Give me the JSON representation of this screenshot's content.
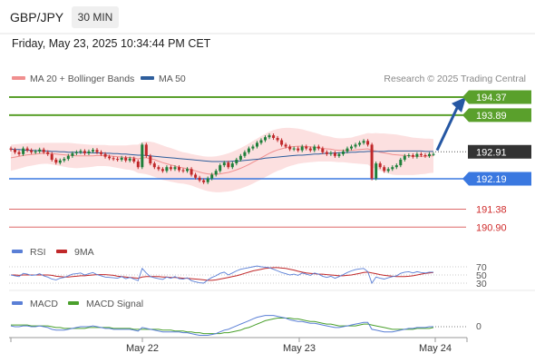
{
  "header": {
    "pair": "GBP/JPY",
    "timeframe": "30 MIN",
    "datetime": "Friday, May 23, 2025 10:34:44 PM CET"
  },
  "colors": {
    "ma20": "#f08f8f",
    "ma50": "#2e5e9c",
    "band_fill": "#fbd6d6",
    "resistance": "#5aa02c",
    "support": "#3a78e0",
    "target": "#cf2a2a",
    "candle_up": "#1e7f3a",
    "candle_down": "#c0282a",
    "rsi": "#5a7fd6",
    "rsi_ma": "#c0282a",
    "macd": "#5a7fd6",
    "macd_signal": "#4aa02c",
    "arrow": "#2557a3"
  },
  "chart_data": [
    {
      "type": "line",
      "panel": "price",
      "legend": [
        "MA 20 + Bollinger Bands",
        "MA 50"
      ],
      "credit": "Research © 2025 Trading Central",
      "x_ticks": [
        "May 22",
        "May 23",
        "May 24"
      ],
      "ylim": [
        190.6,
        194.7
      ],
      "current_price": 192.91,
      "levels": [
        {
          "value": 194.37,
          "label": "194.37",
          "kind": "resistance"
        },
        {
          "value": 193.89,
          "label": "193.89",
          "kind": "resistance"
        },
        {
          "value": 192.91,
          "label": "192.91",
          "kind": "current"
        },
        {
          "value": 192.19,
          "label": "192.19",
          "kind": "support"
        },
        {
          "value": 191.38,
          "label": "191.38",
          "kind": "target"
        },
        {
          "value": 190.9,
          "label": "190.90",
          "kind": "target"
        }
      ],
      "forecast_arrow": {
        "from": 192.95,
        "to": 194.3
      },
      "close": [
        192.97,
        192.9,
        192.85,
        193.0,
        192.95,
        192.9,
        192.92,
        192.97,
        192.9,
        192.85,
        192.7,
        192.62,
        192.68,
        192.72,
        192.8,
        192.87,
        192.9,
        192.93,
        192.87,
        192.92,
        192.96,
        192.9,
        192.85,
        192.78,
        192.74,
        192.72,
        192.7,
        192.75,
        192.68,
        192.73,
        192.65,
        192.5,
        193.1,
        192.8,
        192.6,
        192.5,
        192.45,
        192.4,
        192.5,
        192.45,
        192.5,
        192.42,
        192.4,
        192.45,
        192.3,
        192.22,
        192.15,
        192.1,
        192.2,
        192.3,
        192.4,
        192.55,
        192.62,
        192.5,
        192.6,
        192.7,
        192.8,
        192.9,
        193.0,
        193.05,
        193.15,
        193.22,
        193.3,
        193.35,
        193.28,
        193.22,
        193.1,
        193.05,
        192.98,
        193.0,
        192.95,
        193.05,
        193.0,
        192.95,
        193.05,
        193.0,
        192.9,
        192.85,
        192.88,
        192.8,
        192.85,
        192.92,
        193.0,
        193.05,
        193.1,
        193.15,
        193.2,
        193.1,
        192.2,
        192.6,
        192.5,
        192.4,
        192.45,
        192.5,
        192.55,
        192.7,
        192.8,
        192.82,
        192.78,
        192.85,
        192.82,
        192.8,
        192.85,
        192.85
      ],
      "ma20": [
        192.75,
        192.77,
        192.79,
        192.81,
        192.83,
        192.84,
        192.85,
        192.86,
        192.87,
        192.87,
        192.86,
        192.85,
        192.84,
        192.83,
        192.82,
        192.81,
        192.8,
        192.8,
        192.8,
        192.8,
        192.8,
        192.81,
        192.81,
        192.81,
        192.8,
        192.79,
        192.78,
        192.77,
        192.76,
        192.76,
        192.75,
        192.72,
        192.75,
        192.75,
        192.73,
        192.7,
        192.66,
        192.62,
        192.59,
        192.56,
        192.53,
        192.5,
        192.48,
        192.46,
        192.43,
        192.4,
        192.37,
        192.34,
        192.32,
        192.31,
        192.31,
        192.32,
        192.34,
        192.36,
        192.39,
        192.43,
        192.47,
        192.52,
        192.57,
        192.63,
        192.69,
        192.75,
        192.81,
        192.87,
        192.92,
        192.96,
        192.99,
        193.02,
        193.04,
        193.05,
        193.06,
        193.06,
        193.05,
        193.04,
        193.03,
        193.02,
        193.0,
        192.99,
        192.98,
        192.96,
        192.95,
        192.95,
        192.95,
        192.95,
        192.96,
        192.97,
        192.98,
        192.99,
        192.95,
        192.93,
        192.9,
        192.88,
        192.86,
        192.84,
        192.83,
        192.82,
        192.81,
        192.8,
        192.79,
        192.79,
        192.79,
        192.79,
        192.8,
        192.8
      ],
      "ma50": [
        192.98,
        192.97,
        192.97,
        192.96,
        192.95,
        192.95,
        192.94,
        192.94,
        192.93,
        192.93,
        192.92,
        192.92,
        192.91,
        192.91,
        192.9,
        192.9,
        192.9,
        192.89,
        192.89,
        192.89,
        192.88,
        192.88,
        192.88,
        192.87,
        192.87,
        192.86,
        192.86,
        192.85,
        192.85,
        192.84,
        192.83,
        192.82,
        192.82,
        192.81,
        192.8,
        192.79,
        192.78,
        192.77,
        192.76,
        192.75,
        192.74,
        192.73,
        192.72,
        192.71,
        192.7,
        192.69,
        192.68,
        192.67,
        192.66,
        192.65,
        192.65,
        192.65,
        192.65,
        192.65,
        192.66,
        192.66,
        192.67,
        192.68,
        192.69,
        192.7,
        192.71,
        192.72,
        192.74,
        192.75,
        192.76,
        192.77,
        192.78,
        192.79,
        192.8,
        192.81,
        192.82,
        192.82,
        192.83,
        192.84,
        192.85,
        192.85,
        192.86,
        192.87,
        192.87,
        192.88,
        192.88,
        192.89,
        192.89,
        192.9,
        192.9,
        192.91,
        192.91,
        192.92,
        192.92,
        192.92,
        192.92,
        192.92,
        192.93,
        192.93,
        192.93,
        192.93,
        192.93,
        192.93,
        192.93,
        192.93,
        192.93,
        192.92,
        192.92,
        192.92
      ],
      "bb_width": [
        0.35,
        0.34,
        0.33,
        0.32,
        0.31,
        0.3,
        0.29,
        0.28,
        0.28,
        0.28,
        0.29,
        0.3,
        0.31,
        0.32,
        0.33,
        0.33,
        0.33,
        0.32,
        0.31,
        0.3,
        0.29,
        0.28,
        0.28,
        0.28,
        0.28,
        0.29,
        0.3,
        0.31,
        0.32,
        0.33,
        0.35,
        0.38,
        0.42,
        0.44,
        0.45,
        0.46,
        0.46,
        0.46,
        0.45,
        0.45,
        0.44,
        0.43,
        0.42,
        0.42,
        0.42,
        0.43,
        0.44,
        0.45,
        0.46,
        0.47,
        0.48,
        0.49,
        0.5,
        0.51,
        0.52,
        0.53,
        0.54,
        0.55,
        0.56,
        0.57,
        0.57,
        0.58,
        0.58,
        0.58,
        0.57,
        0.56,
        0.55,
        0.53,
        0.51,
        0.49,
        0.47,
        0.45,
        0.43,
        0.41,
        0.39,
        0.37,
        0.35,
        0.34,
        0.33,
        0.32,
        0.32,
        0.32,
        0.33,
        0.34,
        0.36,
        0.38,
        0.4,
        0.42,
        0.45,
        0.48,
        0.5,
        0.52,
        0.53,
        0.54,
        0.54,
        0.53,
        0.52,
        0.51,
        0.5,
        0.49,
        0.48,
        0.47,
        0.46,
        0.45
      ]
    },
    {
      "type": "line",
      "panel": "rsi",
      "legend": [
        "RSI",
        "9MA"
      ],
      "y_ticks": [
        "70",
        "50",
        "30"
      ],
      "ylim": [
        20,
        80
      ],
      "rsi": [
        50,
        48,
        46,
        54,
        52,
        49,
        50,
        53,
        48,
        45,
        40,
        38,
        42,
        44,
        48,
        52,
        53,
        55,
        50,
        53,
        56,
        51,
        48,
        45,
        44,
        43,
        42,
        46,
        41,
        44,
        40,
        36,
        66,
        55,
        46,
        43,
        41,
        39,
        45,
        42,
        46,
        41,
        40,
        43,
        36,
        33,
        31,
        30,
        38,
        44,
        48,
        54,
        57,
        50,
        55,
        60,
        64,
        66,
        68,
        70,
        72,
        70,
        69,
        68,
        64,
        60,
        56,
        53,
        50,
        52,
        49,
        55,
        52,
        49,
        55,
        52,
        47,
        44,
        47,
        42,
        46,
        51,
        56,
        60,
        63,
        65,
        66,
        58,
        30,
        45,
        42,
        40,
        43,
        46,
        48,
        54,
        57,
        58,
        55,
        58,
        56,
        55,
        57,
        57
      ],
      "ma9": [
        50,
        50,
        49,
        50,
        50,
        50,
        50,
        50,
        50,
        50,
        49,
        47,
        46,
        45,
        45,
        46,
        47,
        48,
        48,
        49,
        50,
        51,
        51,
        51,
        50,
        49,
        47,
        46,
        45,
        44,
        43,
        42,
        45,
        46,
        46,
        46,
        46,
        45,
        45,
        44,
        44,
        43,
        42,
        42,
        41,
        40,
        39,
        38,
        37,
        37,
        38,
        40,
        42,
        44,
        46,
        48,
        51,
        54,
        57,
        60,
        62,
        64,
        66,
        67,
        68,
        68,
        67,
        66,
        64,
        62,
        59,
        57,
        55,
        54,
        53,
        52,
        52,
        51,
        50,
        49,
        48,
        48,
        49,
        50,
        52,
        54,
        56,
        57,
        55,
        53,
        51,
        49,
        48,
        47,
        46,
        46,
        46,
        47,
        48,
        50,
        52,
        54,
        55,
        56
      ]
    },
    {
      "type": "line",
      "panel": "macd",
      "legend": [
        "MACD",
        "MACD Signal"
      ],
      "y_ticks": [
        "0"
      ],
      "ylim": [
        -0.2,
        0.2
      ],
      "macd": [
        0.01,
        0.0,
        0.0,
        0.01,
        0.01,
        0.0,
        0.0,
        0.01,
        0.0,
        -0.01,
        -0.03,
        -0.04,
        -0.04,
        -0.04,
        -0.03,
        -0.02,
        -0.01,
        0.0,
        0.0,
        0.0,
        0.01,
        0.0,
        -0.01,
        -0.02,
        -0.02,
        -0.03,
        -0.03,
        -0.03,
        -0.03,
        -0.03,
        -0.04,
        -0.05,
        -0.01,
        -0.02,
        -0.03,
        -0.04,
        -0.05,
        -0.06,
        -0.06,
        -0.06,
        -0.06,
        -0.06,
        -0.07,
        -0.07,
        -0.08,
        -0.09,
        -0.1,
        -0.1,
        -0.1,
        -0.09,
        -0.08,
        -0.06,
        -0.04,
        -0.03,
        -0.01,
        0.01,
        0.03,
        0.05,
        0.07,
        0.09,
        0.11,
        0.12,
        0.13,
        0.13,
        0.13,
        0.12,
        0.11,
        0.1,
        0.08,
        0.07,
        0.06,
        0.06,
        0.05,
        0.04,
        0.04,
        0.03,
        0.02,
        0.01,
        0.0,
        -0.01,
        -0.01,
        0.0,
        0.01,
        0.02,
        0.03,
        0.04,
        0.05,
        0.05,
        -0.03,
        -0.04,
        -0.05,
        -0.06,
        -0.06,
        -0.06,
        -0.05,
        -0.04,
        -0.03,
        -0.02,
        -0.02,
        -0.01,
        -0.01,
        -0.01,
        0.0,
        0.0
      ],
      "signal": [
        0.02,
        0.02,
        0.02,
        0.02,
        0.02,
        0.01,
        0.01,
        0.01,
        0.01,
        0.01,
        0.0,
        -0.01,
        -0.01,
        -0.02,
        -0.02,
        -0.02,
        -0.02,
        -0.02,
        -0.02,
        -0.01,
        -0.01,
        -0.01,
        -0.01,
        -0.01,
        -0.01,
        -0.02,
        -0.02,
        -0.02,
        -0.02,
        -0.02,
        -0.03,
        -0.03,
        -0.03,
        -0.03,
        -0.03,
        -0.03,
        -0.03,
        -0.04,
        -0.04,
        -0.04,
        -0.05,
        -0.05,
        -0.05,
        -0.06,
        -0.06,
        -0.07,
        -0.07,
        -0.08,
        -0.08,
        -0.08,
        -0.08,
        -0.08,
        -0.07,
        -0.07,
        -0.06,
        -0.05,
        -0.04,
        -0.02,
        -0.01,
        0.01,
        0.03,
        0.05,
        0.07,
        0.08,
        0.09,
        0.1,
        0.1,
        0.1,
        0.1,
        0.09,
        0.09,
        0.08,
        0.07,
        0.06,
        0.06,
        0.05,
        0.04,
        0.03,
        0.03,
        0.02,
        0.01,
        0.01,
        0.01,
        0.01,
        0.01,
        0.02,
        0.03,
        0.03,
        0.02,
        0.01,
        0.0,
        -0.01,
        -0.02,
        -0.03,
        -0.03,
        -0.03,
        -0.03,
        -0.03,
        -0.03,
        -0.02,
        -0.02,
        -0.02,
        -0.02,
        -0.01
      ]
    }
  ]
}
